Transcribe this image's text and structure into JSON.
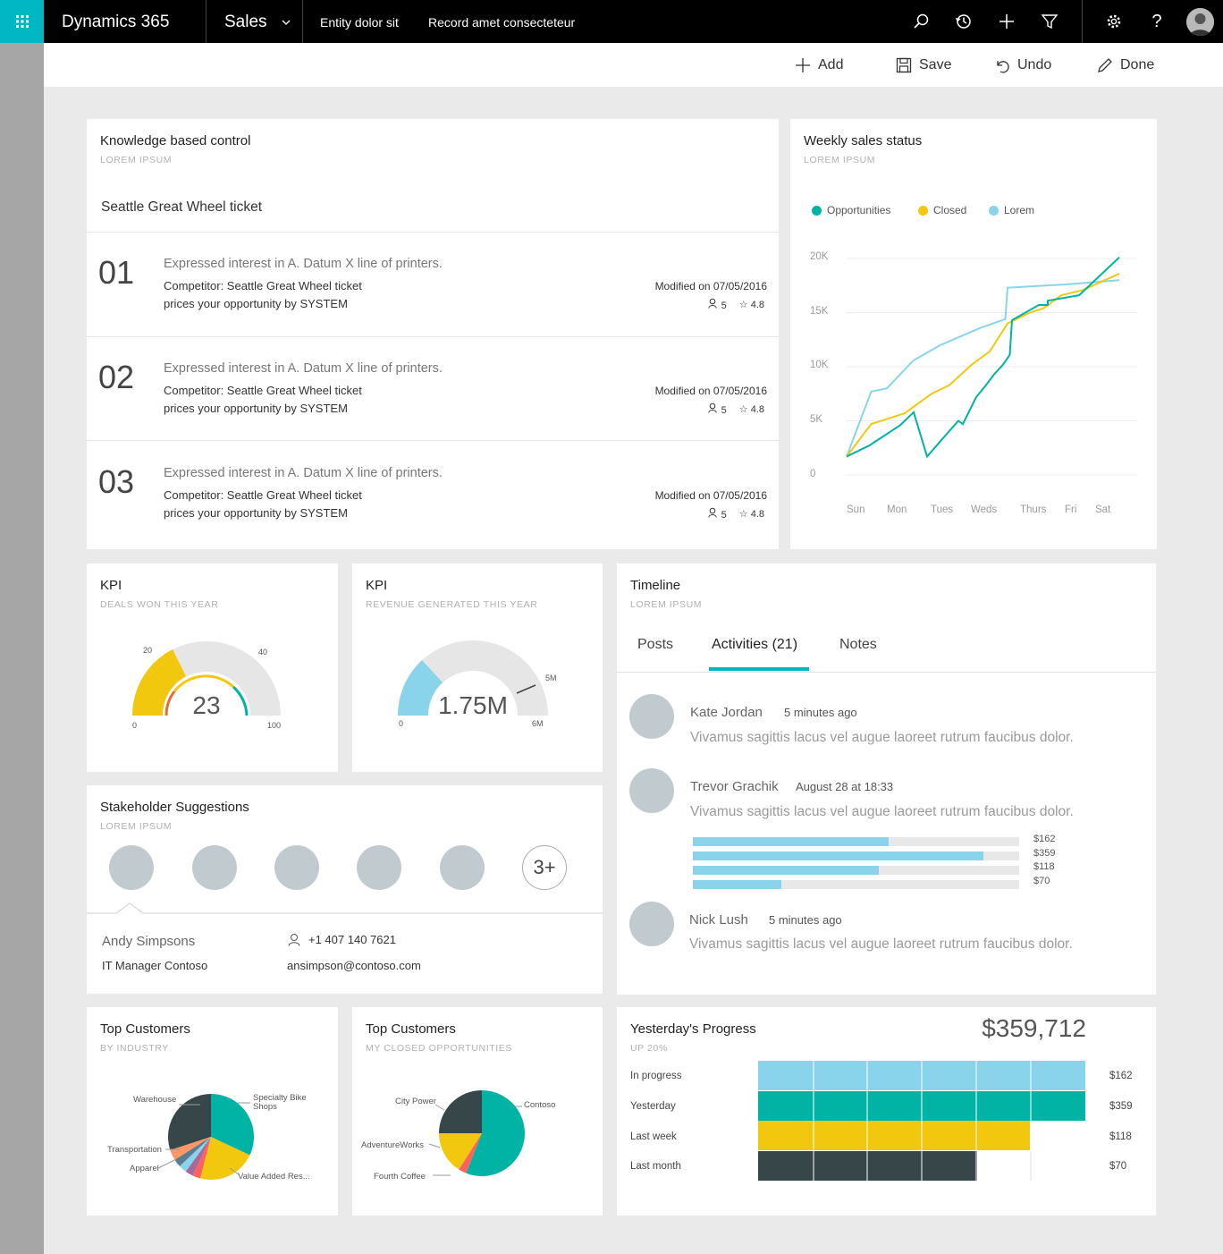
{
  "topbar": {
    "app_name": "Dynamics 365",
    "module": "Sales",
    "entity": "Entity dolor sit",
    "record": "Record amet consecteteur",
    "icons": [
      "search-icon",
      "history-icon",
      "plus-icon",
      "filter-icon",
      "gear-icon",
      "help-icon",
      "avatar"
    ],
    "accent": "#00b7c3"
  },
  "commands": {
    "add": "Add",
    "save": "Save",
    "undo": "Undo",
    "done": "Done"
  },
  "knowledge": {
    "title": "Knowledge based control",
    "subtitle": "LOREM IPSUM",
    "heading": "Seattle Great Wheel ticket",
    "items": [
      {
        "num": "01",
        "line1": "Expressed interest in A. Datum X line of printers.",
        "line2": "Competitor: Seattle Great Wheel ticket",
        "line3": "prices your opportunity by SYSTEM",
        "modified": "Modified on 07/05/2016",
        "users": "5",
        "rating": "4.8"
      },
      {
        "num": "02",
        "line1": "Expressed interest in A. Datum X line of printers.",
        "line2": "Competitor: Seattle Great Wheel ticket",
        "line3": "prices your opportunity by SYSTEM",
        "modified": "Modified on 07/05/2016",
        "users": "5",
        "rating": "4.8"
      },
      {
        "num": "03",
        "line1": "Expressed interest in A. Datum X line of printers.",
        "line2": "Competitor: Seattle Great Wheel ticket",
        "line3": "prices your opportunity by SYSTEM",
        "modified": "Modified on 07/05/2016",
        "users": "5",
        "rating": "4.8"
      }
    ]
  },
  "weekly": {
    "title": "Weekly sales status",
    "subtitle": "LOREM IPSUM",
    "chart_data": {
      "type": "line",
      "categories": [
        "Sun",
        "Mon",
        "Tues",
        "Weds",
        "Thurs",
        "Fri",
        "Sat"
      ],
      "y_ticks": [
        "20K",
        "15K",
        "10K",
        "5K",
        "0"
      ],
      "ylim": [
        0,
        20000
      ],
      "legend_position": "top",
      "grid": true,
      "series": [
        {
          "name": "Opportunities",
          "color": "#00b3a4",
          "x": [
            0,
            0.5,
            1.2,
            1.5,
            1.8,
            2.2,
            2.5,
            2.6,
            2.9,
            3.1,
            3.3,
            3.5,
            3.65,
            3.7,
            4.3,
            4.5,
            4.5,
            5.2,
            6.1
          ],
          "values": [
            1700,
            2700,
            4600,
            5800,
            1700,
            3600,
            5000,
            4700,
            7200,
            8200,
            9300,
            10200,
            11100,
            14300,
            15700,
            15700,
            16100,
            16600,
            20100
          ]
        },
        {
          "name": "Closed",
          "color": "#f2c80f",
          "x": [
            0,
            0.55,
            1.3,
            1.9,
            2.3,
            2.8,
            3.2,
            3.6,
            4.1,
            4.4,
            4.8,
            5.3,
            6.1
          ],
          "values": [
            1700,
            4700,
            5700,
            7500,
            8300,
            10200,
            11400,
            14000,
            15000,
            15400,
            16600,
            17100,
            18600
          ]
        },
        {
          "name": "Lorem",
          "color": "#8ad4eb",
          "x": [
            0,
            0.55,
            0.9,
            1.5,
            2.1,
            3.0,
            3.55,
            3.6,
            4.9,
            6.1
          ],
          "values": [
            1700,
            7700,
            8000,
            10600,
            12000,
            13600,
            14400,
            17300,
            17600,
            18000
          ]
        }
      ]
    }
  },
  "kpi1": {
    "title": "KPI",
    "subtitle": "DEALS WON THIS YEAR",
    "value": "23",
    "labels": {
      "min": "0",
      "t20": "20",
      "t40": "40",
      "max": "100"
    },
    "chart_data": {
      "type": "gauge",
      "min": 0,
      "max": 100,
      "value": 23,
      "ticks": [
        0,
        20,
        40,
        100
      ],
      "colors": {
        "fill": "#f2c80f",
        "track": "#e6e6e6"
      }
    }
  },
  "kpi2": {
    "title": "KPI",
    "subtitle": "REVENUE GENERATED THIS YEAR",
    "value": "1.75M",
    "labels": {
      "min": "0",
      "target": "5M",
      "max": "6M"
    },
    "chart_data": {
      "type": "gauge",
      "min": 0,
      "max": 6000000,
      "value": 1750000,
      "target": 5000000,
      "colors": {
        "fill": "#8ad4eb",
        "track": "#e6e6e6"
      }
    }
  },
  "timeline": {
    "title": "Timeline",
    "subtitle": "LOREM IPSUM",
    "tabs": [
      "Posts",
      "Activities (21)",
      "Notes"
    ],
    "active_tab": 1,
    "entries": [
      {
        "name": "Kate Jordan",
        "time": "5 minutes ago",
        "text": "Vivamus sagittis lacus vel augue laoreet rutrum faucibus dolor."
      },
      {
        "name": "Trevor Grachik",
        "time": "August 28 at 18:33",
        "text": "Vivamus sagittis lacus vel augue laoreet rutrum faucibus dolor."
      },
      {
        "name": "Nick Lush",
        "time": "5 minutes ago",
        "text": "Vivamus sagittis lacus vel augue laoreet rutrum faucibus dolor."
      }
    ],
    "chart_data": {
      "type": "bar",
      "orientation": "horizontal",
      "categories": [
        "$162",
        "$359",
        "$118",
        "$70"
      ],
      "values": [
        0.6,
        0.89,
        0.57,
        0.27
      ]
    }
  },
  "stakeholders": {
    "title": "Stakeholder Suggestions",
    "subtitle": "LOREM IPSUM",
    "more": "3+",
    "selected": {
      "name": "Andy Simpsons",
      "role": "IT Manager Contoso",
      "phone": "+1 407 140 7621",
      "email": "ansimpson@contoso.com"
    }
  },
  "customers_industry": {
    "title": "Top Customers",
    "subtitle": "BY INDUSTRY",
    "chart_data": {
      "type": "pie",
      "slices": [
        {
          "label": "Specialty Bike Shops",
          "value": 32,
          "color": "#00b3a4"
        },
        {
          "label": "Value Added Res...",
          "value": 22,
          "color": "#f2c80f"
        },
        {
          "label": "",
          "value": 3,
          "color": "#fd625e"
        },
        {
          "label": "Apparel",
          "value": 3,
          "color": "#a66999"
        },
        {
          "label": "",
          "value": 3,
          "color": "#8ad4eb"
        },
        {
          "label": "",
          "value": 3,
          "color": "#5b7d91"
        },
        {
          "label": "Transportation",
          "value": 4,
          "color": "#fe9666"
        },
        {
          "label": "Warehouse",
          "value": 30,
          "color": "#374649"
        }
      ]
    }
  },
  "customers_opps": {
    "title": "Top Customers",
    "subtitle": "MY CLOSED OPPORTUNITIES",
    "chart_data": {
      "type": "pie",
      "slices": [
        {
          "label": "Contoso",
          "value": 56,
          "color": "#00b3a4"
        },
        {
          "label": "Fourth Coffee",
          "value": 3,
          "color": "#fd625e"
        },
        {
          "label": "AdventureWorks",
          "value": 16,
          "color": "#f2c80f"
        },
        {
          "label": "City Power",
          "value": 25,
          "color": "#374649"
        }
      ]
    }
  },
  "progress": {
    "title": "Yesterday's Progress",
    "subtitle": "UP 20%",
    "total": "$359,712",
    "chart_data": {
      "type": "bar",
      "orientation": "horizontal",
      "categories": [
        "In progress",
        "Yesterday",
        "Last week",
        "Last month"
      ],
      "value_labels": [
        "$162",
        "$359",
        "$118",
        "$70"
      ],
      "values": [
        1.0,
        1.0,
        0.83,
        0.67
      ],
      "colors": [
        "#8ad4eb",
        "#00b3a4",
        "#f2c80f",
        "#374649"
      ]
    }
  }
}
